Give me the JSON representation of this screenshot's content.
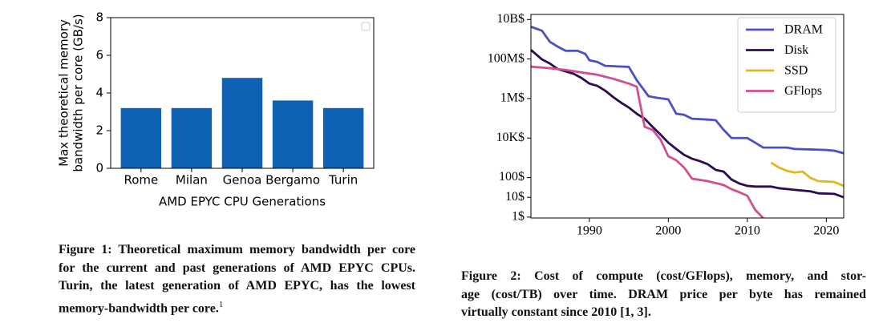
{
  "chart_data": [
    {
      "type": "bar",
      "ylabel": [
        "Max theoretical memory",
        "bandwidth per core (GB/s)"
      ],
      "xlabel": "AMD EPYC CPU Generations",
      "categories": [
        "Rome",
        "Milan",
        "Genoa",
        "Bergamo",
        "Turin"
      ],
      "values": [
        3.2,
        3.2,
        4.8,
        3.6,
        3.2
      ],
      "color": "#0f62b3",
      "ylim": [
        0,
        8
      ],
      "yticks": [
        0,
        2,
        4,
        6,
        8
      ]
    },
    {
      "type": "line",
      "log_y": true,
      "legend": "upper right",
      "xlim": [
        1982.6,
        2022.2
      ],
      "xticks": [
        1990,
        2000,
        2010,
        2020
      ],
      "ylim": [
        0.9,
        18000000000
      ],
      "yticks": [
        {
          "value": 1,
          "label": "1$"
        },
        {
          "value": 10,
          "label": "10$"
        },
        {
          "value": 100,
          "label": "100$"
        },
        {
          "value": 10000,
          "label": "10K$"
        },
        {
          "value": 1000000,
          "label": "1M$"
        },
        {
          "value": 100000000,
          "label": "100M$"
        },
        {
          "value": 10000000000,
          "label": "10B$"
        }
      ],
      "series": [
        {
          "name": "DRAM",
          "color": "#4b50c2",
          "x": [
            1982.6,
            1984,
            1985,
            1986,
            1987,
            1988.5,
            1989.5,
            1990,
            1991,
            1992,
            1995,
            1996,
            1997.5,
            1998.5,
            2000,
            2001,
            2002,
            2003,
            2005,
            2006,
            2007,
            2008,
            2010,
            2011,
            2012,
            2015,
            2016,
            2020,
            2021,
            2022.2
          ],
          "values": [
            4300000000,
            2700000000,
            740000000,
            420000000,
            260000000,
            260000000,
            180000000,
            87000000,
            71000000,
            45000000,
            40000000,
            8400000,
            1300000,
            1100000,
            900000,
            170000,
            150000,
            95000,
            86000,
            80000,
            26000,
            10000,
            10000,
            5800,
            3300,
            3300,
            2800,
            2500,
            2300,
            1700
          ]
        },
        {
          "name": "Disk",
          "color": "#2b0b52",
          "x": [
            1982.6,
            1984,
            1985,
            1986,
            1988,
            1989,
            1990,
            1991,
            1992,
            1993,
            1994,
            1995,
            1996,
            1997,
            1998,
            1999,
            2000,
            2001,
            2002,
            2003,
            2004,
            2005,
            2006,
            2007,
            2008,
            2009,
            2010,
            2011,
            2013,
            2014,
            2016,
            2018,
            2019,
            2021,
            2022.2
          ],
          "values": [
            290000000,
            95000000,
            59000000,
            31000000,
            18000000,
            11000000,
            5700000,
            4400000,
            2500000,
            1200000,
            620000,
            350000,
            170000,
            95000,
            37000,
            15000,
            5800,
            2800,
            1400,
            900,
            680,
            470,
            245,
            200,
            80,
            50,
            38,
            35,
            35,
            29,
            24,
            20,
            16,
            15,
            10
          ]
        },
        {
          "name": "SSD",
          "color": "#e1b719",
          "x": [
            2013,
            2014,
            2015,
            2016,
            2017,
            2018,
            2019,
            2021,
            2022.2
          ],
          "values": [
            570,
            320,
            220,
            180,
            200,
            95,
            66,
            60,
            38
          ]
        },
        {
          "name": "GFlops",
          "color": "#d24f8e",
          "x": [
            1982.6,
            1985,
            1987,
            1989,
            1991,
            1993,
            1995,
            1996,
            1997,
            1998,
            1999,
            2000,
            2001,
            2002,
            2003,
            2005,
            2007,
            2008,
            2009,
            2010,
            2011,
            2012
          ],
          "values": [
            41000000,
            34000000,
            28000000,
            21000000,
            16000000,
            10000000,
            5700000,
            4000000,
            37000,
            26000,
            8500,
            1200,
            750,
            320,
            88,
            66,
            42,
            26,
            18,
            12,
            2.3,
            0.9
          ]
        }
      ]
    }
  ],
  "captions": [
    {
      "lines": [
        "Figure 1: Theoretical maximum memory bandwidth per core",
        "for the current and past generations of AMD EPYC CPUs.",
        "Turin, the latest generation of AMD EPYC, has the lowest",
        "memory-bandwidth per core."
      ],
      "footnote": "1"
    },
    {
      "lines": [
        "Figure 2: Cost of compute (cost/GFlops), memory, and stor-",
        "age (cost/TB) over time. DRAM price per byte has remained",
        "virtually constant since 2010 [1, 3]."
      ]
    }
  ]
}
